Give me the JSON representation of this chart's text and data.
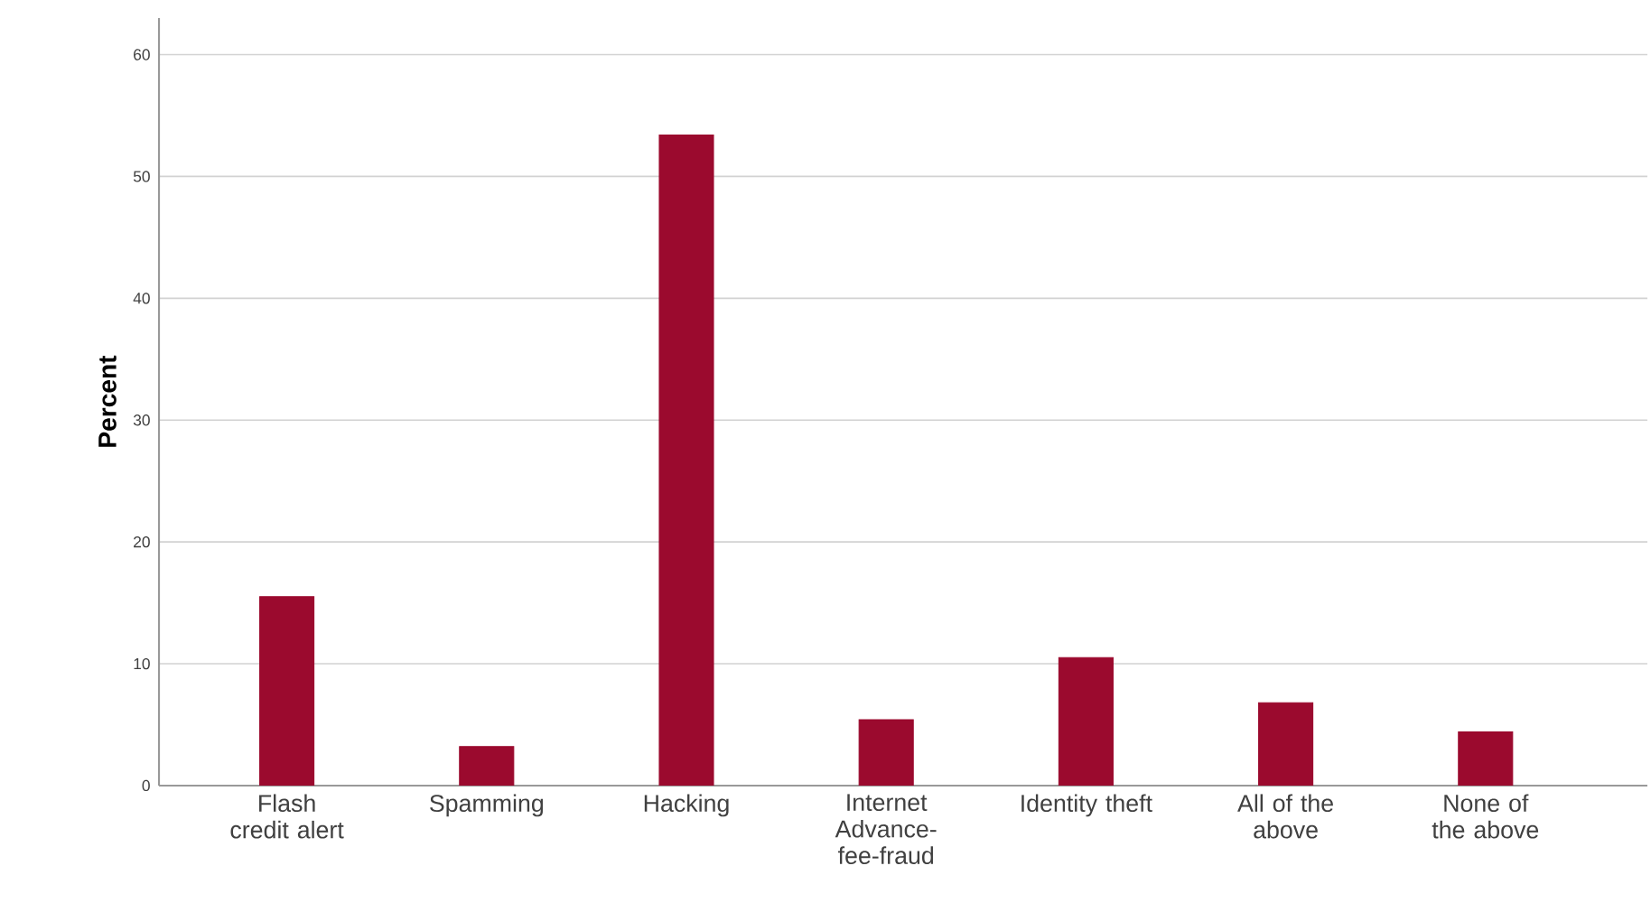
{
  "chart_data": {
    "type": "bar",
    "ylabel": "Percent",
    "categories": [
      "Flash credit alert",
      "Spamming",
      "Hacking",
      "Internet Advance-fee-fraud",
      "Identity theft",
      "All of the above",
      "None of the above"
    ],
    "values": [
      15.5,
      3.2,
      53.4,
      5.4,
      10.5,
      6.8,
      4.4
    ],
    "color": "#9b0a2e",
    "ylim": [
      0,
      63
    ],
    "yticks": [
      0,
      10,
      20,
      30,
      40,
      50,
      60
    ],
    "grid": "y"
  }
}
